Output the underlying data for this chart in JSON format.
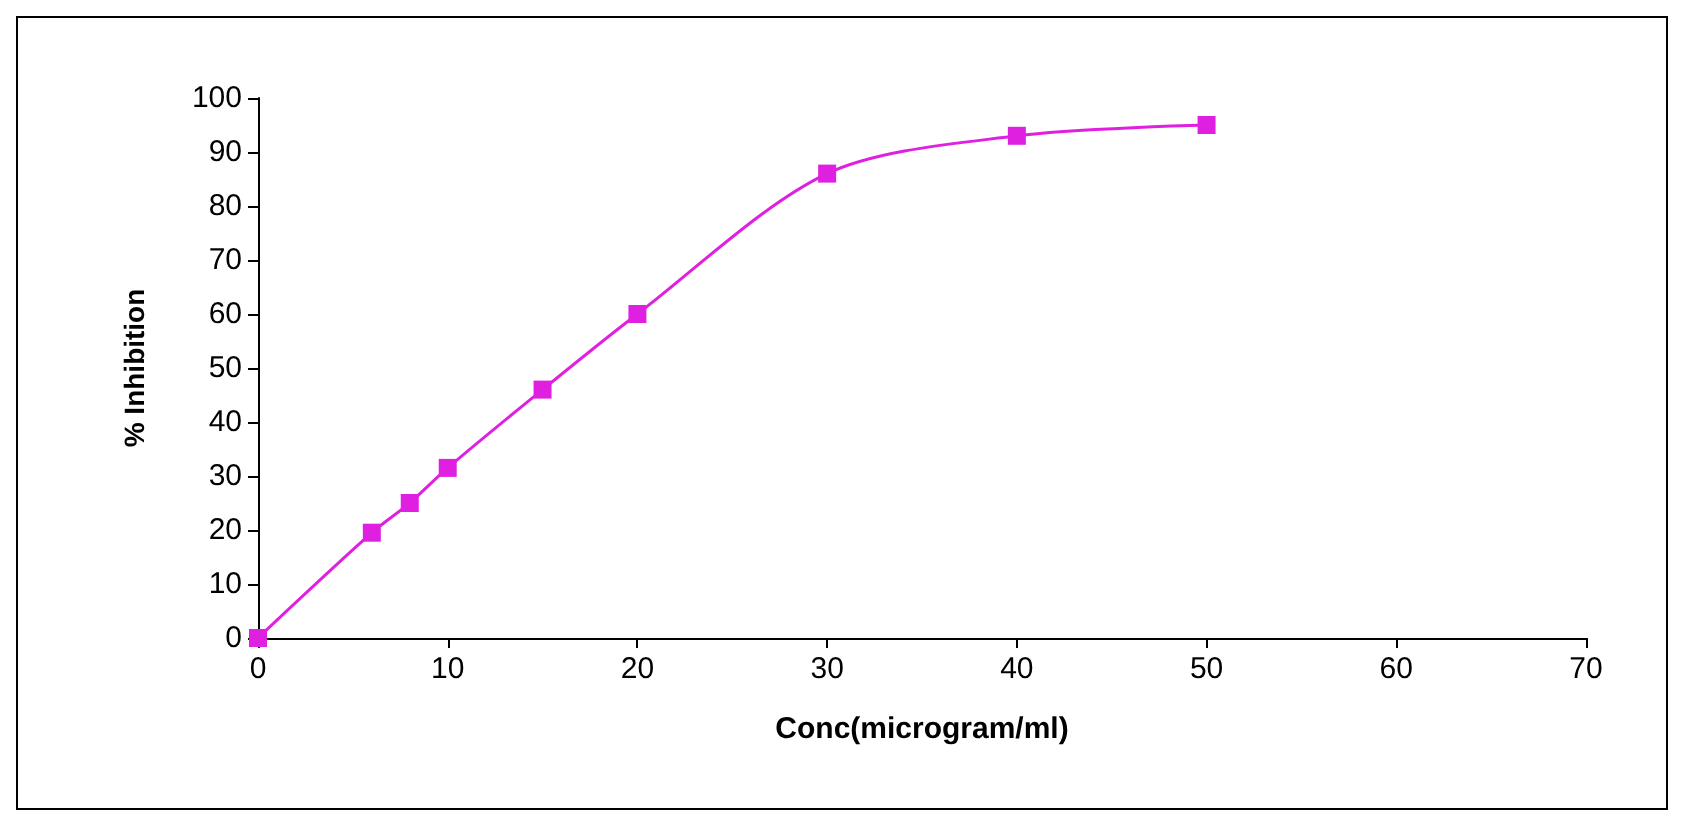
{
  "chart_data": {
    "type": "line",
    "xlabel": "Conc(microgram/ml)",
    "ylabel": "% Inhibition",
    "x": [
      0,
      6,
      8,
      10,
      15,
      20,
      30,
      40,
      50
    ],
    "series": [
      {
        "color": "#e020e0",
        "values": [
          0,
          19.5,
          25,
          31.5,
          46,
          60,
          86,
          93,
          95
        ]
      }
    ],
    "xlim": [
      0,
      70
    ],
    "xticks": [
      0,
      10,
      20,
      30,
      40,
      50,
      60,
      70
    ],
    "ylim": [
      0,
      100
    ],
    "yticks": [
      0,
      10,
      20,
      30,
      40,
      50,
      60,
      70,
      80,
      90,
      100
    ],
    "grid": false,
    "marker": "square",
    "line_style": "solid"
  }
}
